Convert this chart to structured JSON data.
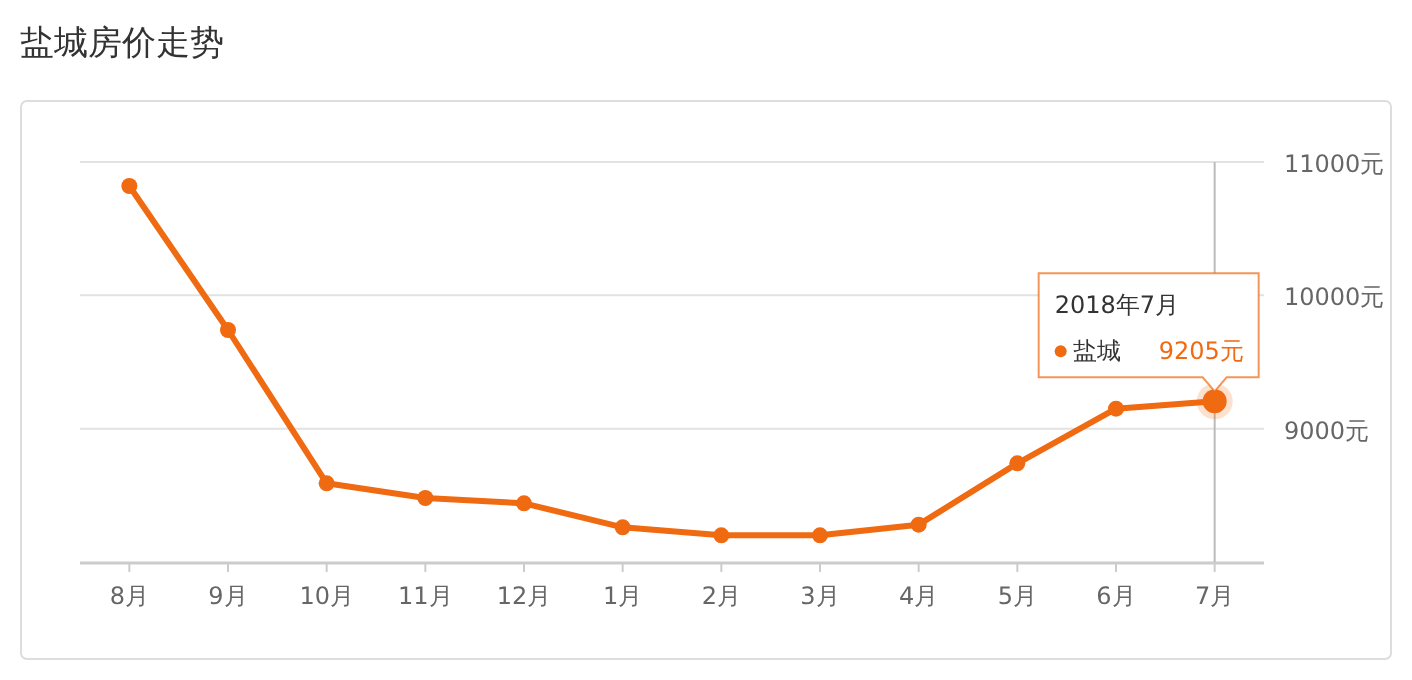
{
  "chart_data": {
    "type": "line",
    "title": "盐城房价走势",
    "categories": [
      "8月",
      "9月",
      "10月",
      "11月",
      "12月",
      "1月",
      "2月",
      "3月",
      "4月",
      "5月",
      "6月",
      "7月"
    ],
    "series": [
      {
        "name": "盐城",
        "color": "#ef6a10",
        "values": [
          10820,
          9740,
          8590,
          8480,
          8440,
          8260,
          8200,
          8200,
          8280,
          8740,
          9150,
          9205
        ],
        "value_labels": [
          null,
          null,
          null,
          null,
          null,
          null,
          null,
          null,
          null,
          null,
          null,
          "9205元"
        ]
      }
    ],
    "ylim": [
      8000,
      11000
    ],
    "yticks": [
      {
        "value": 8000,
        "label": null
      },
      {
        "value": 9000,
        "label": "9000元"
      },
      {
        "value": 10000,
        "label": "10000元"
      },
      {
        "value": 11000,
        "label": "11000元"
      }
    ],
    "grid": "y",
    "marker": "circle",
    "line_style": "solid",
    "legend": "top right",
    "ref_lines": [
      {
        "axis": "x",
        "value": "7月",
        "color": "#bbbbbb"
      }
    ],
    "annotations": [
      "2018年7月"
    ]
  }
}
